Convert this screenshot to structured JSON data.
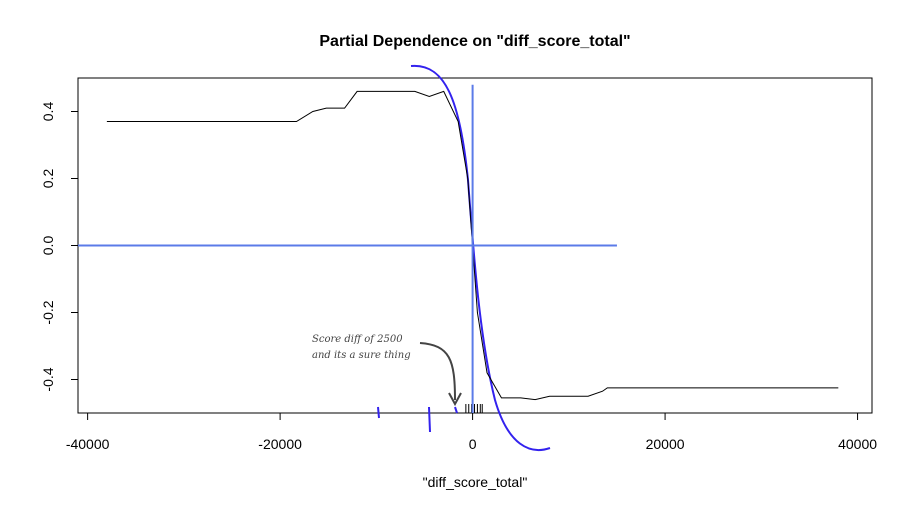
{
  "chart_data": {
    "type": "line",
    "title": "Partial Dependence on \"diff_score_total\"",
    "x_label": "\"diff_score_total\"",
    "x": [
      -38000,
      -18300,
      -16600,
      -15200,
      -13300,
      -12000,
      -6000,
      -4500,
      -3000,
      -1500,
      -500,
      0,
      500,
      1500,
      3000,
      5000,
      6500,
      8000,
      12000,
      13500,
      14000,
      38000
    ],
    "series": [
      {
        "color": "#000000",
        "values": [
          0.37,
          0.37,
          0.4,
          0.41,
          0.41,
          0.46,
          0.46,
          0.445,
          0.46,
          0.37,
          0.2,
          0.0,
          -0.2,
          -0.38,
          -0.455,
          -0.455,
          -0.46,
          -0.45,
          -0.45,
          -0.435,
          -0.425,
          -0.425
        ]
      }
    ],
    "rug": [
      -700,
      -400,
      -100,
      200,
      500,
      800,
      1000
    ],
    "xlim": [
      -41000,
      41500
    ],
    "ylim": [
      -0.5,
      0.5
    ],
    "xticks": [
      -40000,
      -20000,
      0,
      20000,
      40000
    ],
    "yticks": [
      -0.4,
      -0.2,
      {
        "value": 0,
        "label": "0.0"
      },
      0.2,
      0.4
    ],
    "hline": {
      "value": 0,
      "from": -41000,
      "to": 15000,
      "color": "#5b7be8"
    },
    "vline": {
      "value": 0,
      "from": -0.5,
      "to": 0.48,
      "color": "#5b7be8"
    },
    "annotation": [
      "Score diff of 2500",
      "and its a sure thing"
    ]
  }
}
